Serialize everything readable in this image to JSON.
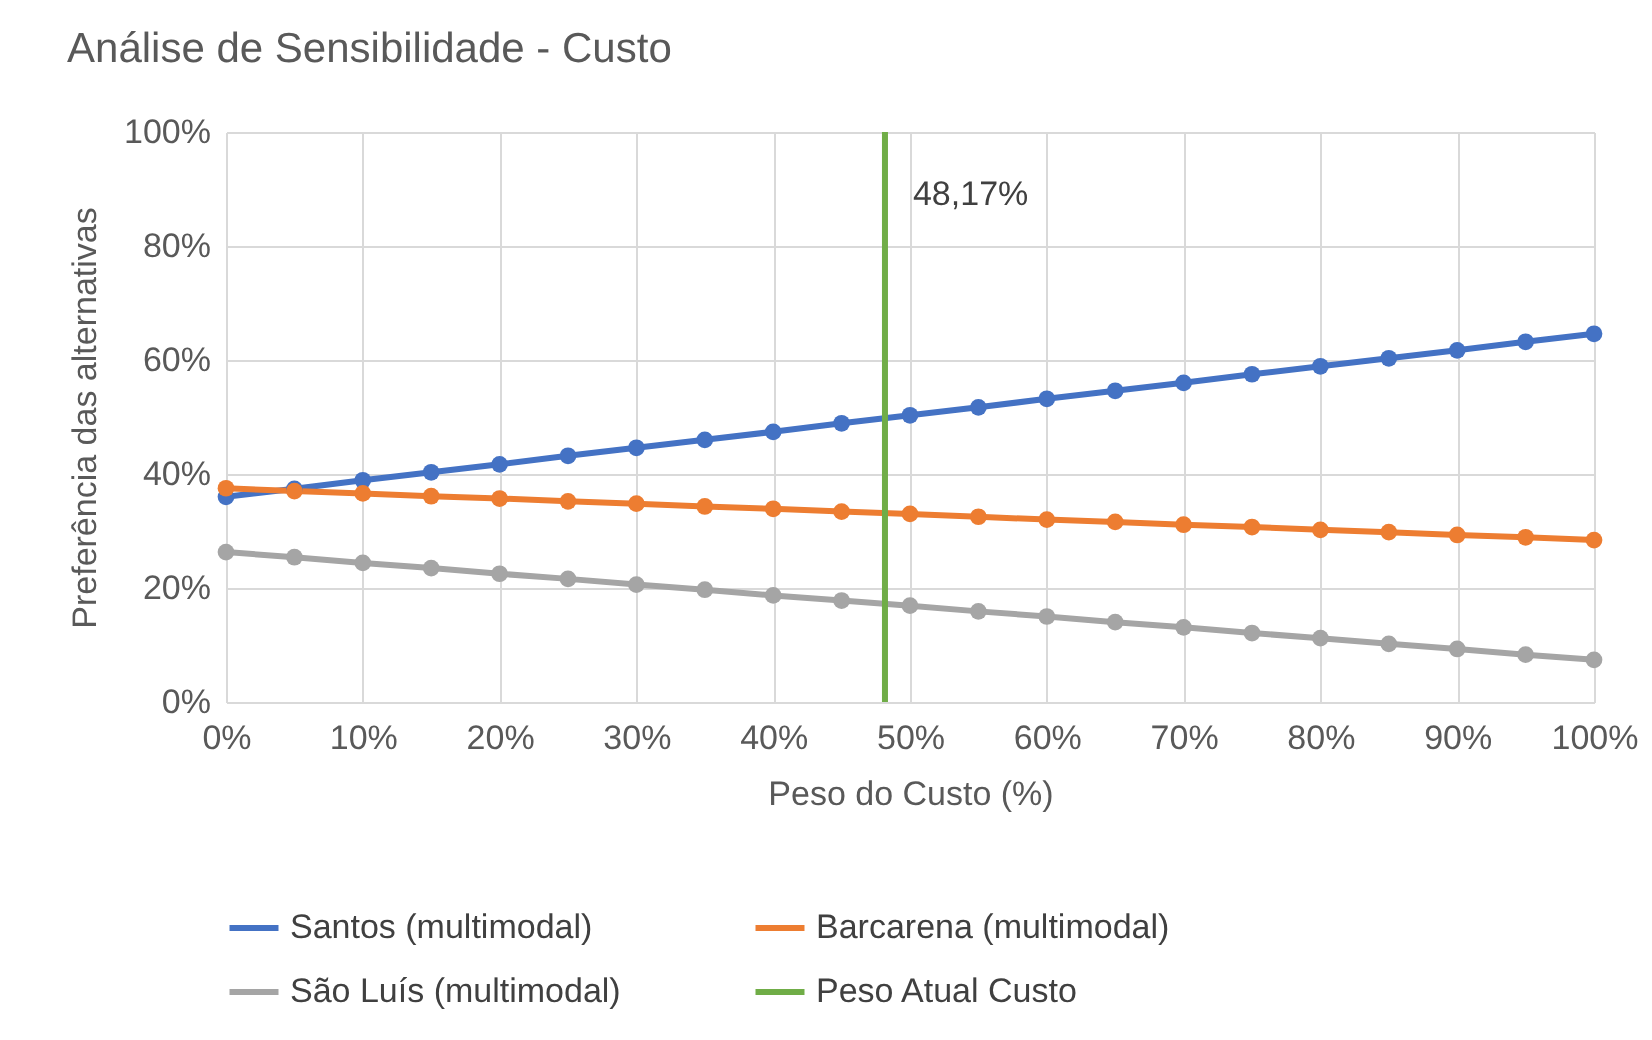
{
  "chart_data": {
    "type": "line",
    "title": "Análise de Sensibilidade - Custo",
    "xlabel": "Peso do Custo (%)",
    "ylabel": "Preferência das alternativas",
    "x": [
      0,
      5,
      10,
      15,
      20,
      25,
      30,
      35,
      40,
      45,
      50,
      55,
      60,
      65,
      70,
      75,
      80,
      85,
      90,
      95,
      100
    ],
    "series": [
      {
        "name": "Santos (multimodal)",
        "color": "#4472c4",
        "values": [
          36,
          37.4,
          38.9,
          40.3,
          41.7,
          43.2,
          44.6,
          46,
          47.4,
          48.9,
          50.3,
          51.7,
          53.2,
          54.6,
          56,
          57.5,
          58.9,
          60.3,
          61.7,
          63.2,
          64.6
        ]
      },
      {
        "name": "Barcarena (multimodal)",
        "color": "#ed7d31",
        "values": [
          37.5,
          37,
          36.6,
          36.1,
          35.7,
          35.2,
          34.8,
          34.3,
          33.9,
          33.4,
          33,
          32.5,
          32,
          31.6,
          31.1,
          30.7,
          30.2,
          29.8,
          29.3,
          28.9,
          28.4
        ]
      },
      {
        "name": "São Luís (multimodal)",
        "color": "#a5a5a5",
        "values": [
          26.3,
          25.4,
          24.4,
          23.5,
          22.5,
          21.6,
          20.6,
          19.7,
          18.7,
          17.8,
          16.9,
          15.9,
          15,
          14,
          13.1,
          12.1,
          11.2,
          10.2,
          9.3,
          8.3,
          7.4
        ]
      }
    ],
    "ref_lines": [
      {
        "axis": "x",
        "value": 48.17,
        "label": "Peso Atual Custo",
        "color": "#70ad47"
      }
    ],
    "annotations": [
      {
        "text": "48,17%",
        "x": 48.17,
        "y": 89
      }
    ],
    "xlim": [
      0,
      100
    ],
    "ylim": [
      0,
      100
    ],
    "xticks": [
      {
        "value": 0,
        "label": "0%"
      },
      {
        "value": 10,
        "label": "10%"
      },
      {
        "value": 20,
        "label": "20%"
      },
      {
        "value": 30,
        "label": "30%"
      },
      {
        "value": 40,
        "label": "40%"
      },
      {
        "value": 50,
        "label": "50%"
      },
      {
        "value": 60,
        "label": "60%"
      },
      {
        "value": 70,
        "label": "70%"
      },
      {
        "value": 80,
        "label": "80%"
      },
      {
        "value": 90,
        "label": "90%"
      },
      {
        "value": 100,
        "label": "100%"
      }
    ],
    "yticks": [
      {
        "value": 0,
        "label": "0%"
      },
      {
        "value": 20,
        "label": "20%"
      },
      {
        "value": 40,
        "label": "40%"
      },
      {
        "value": 60,
        "label": "60%"
      },
      {
        "value": 80,
        "label": "80%"
      },
      {
        "value": 100,
        "label": "100%"
      }
    ],
    "grid": true,
    "legend": "bottom",
    "marker": "circle",
    "line_style": "solid"
  }
}
